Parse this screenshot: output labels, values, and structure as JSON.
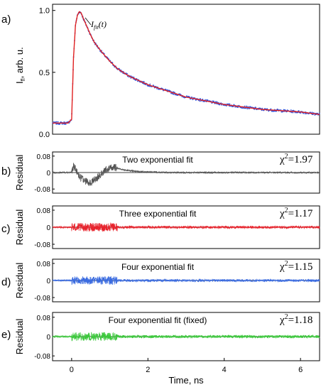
{
  "chart_data": [
    {
      "panel": "a)",
      "type": "line",
      "ylabel_main": "I",
      "ylabel_sub": "fl",
      "ylabel_rest": ", arb. u.",
      "annotation_main": "I",
      "annotation_sub": "fit",
      "annotation_rest": "(t)",
      "xlim": [
        -0.5,
        6.5
      ],
      "ylim": [
        0,
        1.05
      ],
      "yticks": [
        "0.0",
        "0.5",
        "1.0"
      ],
      "ytick_values": [
        0,
        0.5,
        1.0
      ],
      "series": [
        {
          "color": "#3355dd",
          "style": "dots",
          "x": [
            -0.5,
            -0.3,
            -0.1,
            0.0,
            0.05,
            0.1,
            0.15,
            0.2,
            0.25,
            0.3,
            0.4,
            0.5,
            0.6,
            0.8,
            1.0,
            1.2,
            1.5,
            2.0,
            2.5,
            3.0,
            3.5,
            4.0,
            4.5,
            5.0,
            5.5,
            6.0,
            6.5
          ],
          "values": [
            0.09,
            0.09,
            0.09,
            0.12,
            0.62,
            0.88,
            0.96,
            0.99,
            0.98,
            0.94,
            0.87,
            0.8,
            0.74,
            0.66,
            0.59,
            0.53,
            0.47,
            0.4,
            0.35,
            0.3,
            0.27,
            0.24,
            0.22,
            0.2,
            0.19,
            0.18,
            0.16
          ]
        },
        {
          "color": "#e02020",
          "style": "line",
          "x": [
            -0.5,
            -0.3,
            -0.1,
            0.0,
            0.05,
            0.1,
            0.15,
            0.2,
            0.25,
            0.3,
            0.4,
            0.5,
            0.6,
            0.8,
            1.0,
            1.2,
            1.5,
            2.0,
            2.5,
            3.0,
            3.5,
            4.0,
            4.5,
            5.0,
            5.5,
            6.0,
            6.5
          ],
          "values": [
            0.09,
            0.09,
            0.09,
            0.12,
            0.62,
            0.88,
            0.96,
            0.99,
            0.98,
            0.94,
            0.87,
            0.8,
            0.74,
            0.66,
            0.59,
            0.53,
            0.47,
            0.4,
            0.35,
            0.3,
            0.27,
            0.24,
            0.22,
            0.2,
            0.19,
            0.18,
            0.16
          ]
        }
      ]
    },
    {
      "panel": "b)",
      "type": "line",
      "title": "Two exponential fit",
      "chi_label": "χ",
      "chi_sup": "2",
      "chi_value": "=1.97",
      "ylabel": "Residual",
      "yticks": [
        "0.08",
        "0",
        "-0.08"
      ],
      "ytick_values": [
        0.08,
        0,
        -0.08
      ],
      "ylim": [
        -0.1,
        0.1
      ],
      "xlim": [
        -0.5,
        6.5
      ],
      "color": "#555555",
      "profile": {
        "x": [
          -0.5,
          0.0,
          0.05,
          0.1,
          0.2,
          0.35,
          0.5,
          0.7,
          0.9,
          1.1,
          1.4,
          1.8,
          2.5,
          3.5,
          6.5
        ],
        "values": [
          0,
          0,
          0.03,
          0.02,
          -0.02,
          -0.04,
          -0.05,
          -0.02,
          0.015,
          0.025,
          0.012,
          0.004,
          0,
          0,
          0
        ]
      },
      "noise_amplitude": [
        0.004,
        0.018,
        0.004
      ]
    },
    {
      "panel": "c)",
      "type": "line",
      "title": "Three exponential fit",
      "chi_label": "χ",
      "chi_sup": "2",
      "chi_value": "=1.17",
      "ylabel": "Residual",
      "yticks": [
        "0.08",
        "0",
        "-0.08"
      ],
      "ytick_values": [
        0.08,
        0,
        -0.08
      ],
      "ylim": [
        -0.1,
        0.1
      ],
      "xlim": [
        -0.5,
        6.5
      ],
      "color": "#e8232c",
      "profile": {
        "x": [
          -0.5,
          6.5
        ],
        "values": [
          0,
          0
        ]
      },
      "noise_amplitude": [
        0.004,
        0.02,
        0.006
      ]
    },
    {
      "panel": "d)",
      "type": "line",
      "title": "Four exponential fit",
      "chi_label": "χ",
      "chi_sup": "2",
      "chi_value": "=1.15",
      "ylabel": "Residual",
      "yticks": [
        "0.08",
        "0",
        "-0.08"
      ],
      "ytick_values": [
        0.08,
        0,
        -0.08
      ],
      "ylim": [
        -0.1,
        0.1
      ],
      "xlim": [
        -0.5,
        6.5
      ],
      "color": "#3a6be0",
      "profile": {
        "x": [
          -0.5,
          6.5
        ],
        "values": [
          0,
          0
        ]
      },
      "noise_amplitude": [
        0.004,
        0.02,
        0.006
      ]
    },
    {
      "panel": "e)",
      "type": "line",
      "title": "Four exponential fit (fixed)",
      "chi_label": "χ",
      "chi_sup": "2",
      "chi_value": "=1.18",
      "ylabel": "Residual",
      "yticks": [
        "0.08",
        "0",
        "-0.08"
      ],
      "ytick_values": [
        0.08,
        0,
        -0.08
      ],
      "ylim": [
        -0.1,
        0.1
      ],
      "xlim": [
        -0.5,
        6.5
      ],
      "color": "#3cc83c",
      "profile": {
        "x": [
          -0.5,
          6.5
        ],
        "values": [
          0,
          0
        ]
      },
      "noise_amplitude": [
        0.004,
        0.018,
        0.006
      ],
      "xlabel": "Time, ns",
      "xticks": [
        "0",
        "2",
        "4",
        "6"
      ],
      "xtick_values": [
        0,
        2,
        4,
        6
      ]
    }
  ]
}
